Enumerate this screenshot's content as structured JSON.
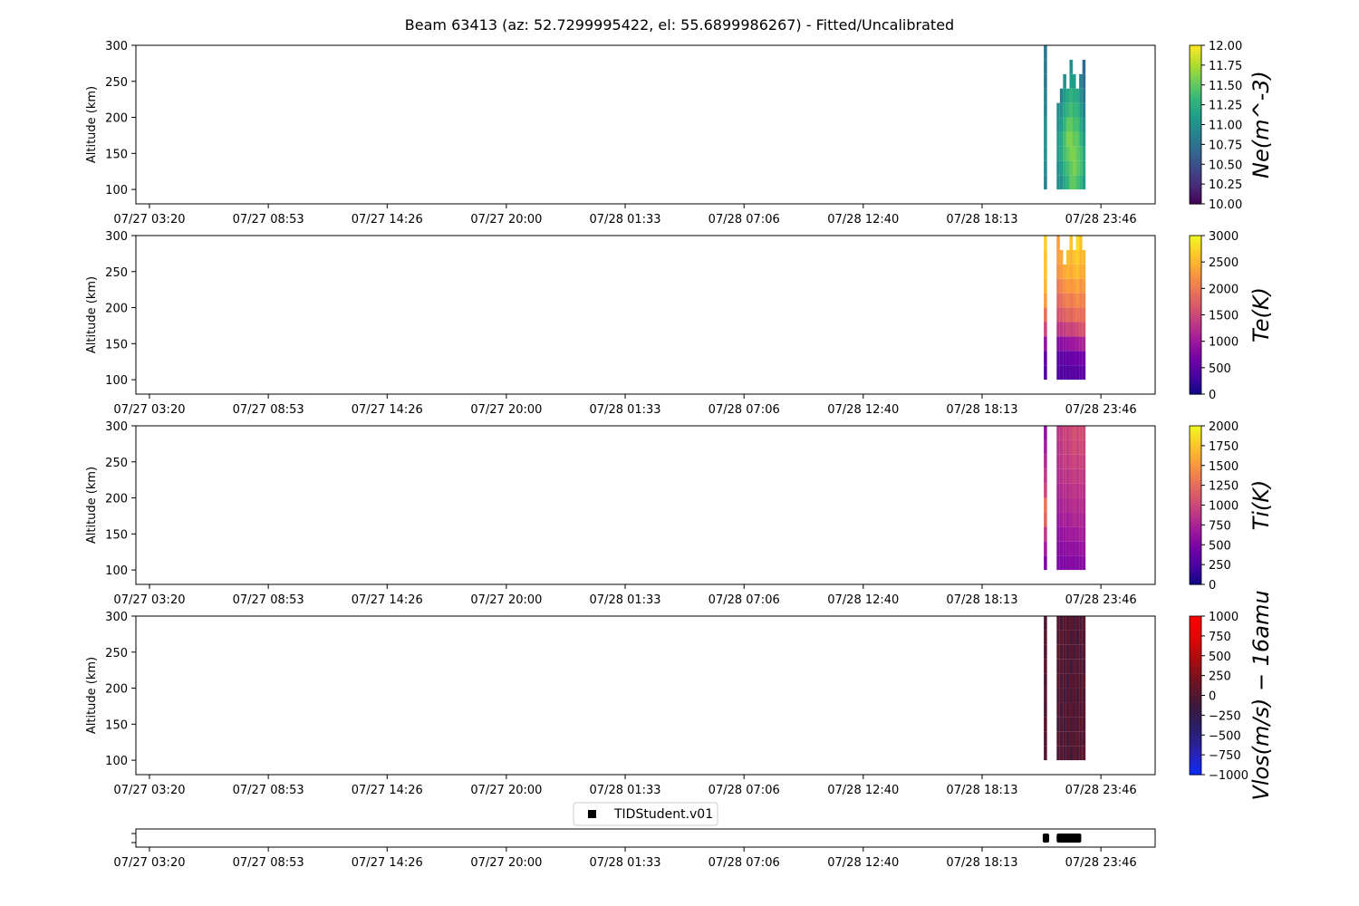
{
  "chart_data": {
    "type": "heatmap",
    "title": "Beam 63413 (az: 52.7299995422, el: 55.6899986267) - Fitted/Uncalibrated",
    "x_tick_labels": [
      "07/27 03:20",
      "07/27 08:53",
      "07/27 14:26",
      "07/27 20:00",
      "07/28 01:33",
      "07/28 07:06",
      "07/28 12:40",
      "07/28 18:13",
      "07/28 23:46"
    ],
    "x_tick_hours": [
      3.333,
      8.883,
      14.433,
      20.0,
      25.55,
      31.1,
      36.667,
      42.217,
      47.767
    ],
    "xlim_hours": [
      2.7,
      50.3
    ],
    "ylabel": "Altitude (km)",
    "ylim": [
      80,
      300
    ],
    "y_ticks": [
      100,
      150,
      200,
      250,
      300
    ],
    "altitude_bins": [
      100,
      120,
      140,
      160,
      180,
      200,
      220,
      240,
      260,
      280,
      300
    ],
    "time_columns_hours": [
      45.1,
      45.7,
      45.85,
      46.0,
      46.15,
      46.3,
      46.45,
      46.6,
      46.75,
      46.9
    ],
    "panels": [
      {
        "label": "Ne(m^-3)",
        "colormap": "viridis",
        "vmin": 10,
        "vmax": 12,
        "colorbar_ticks": [
          "10.00",
          "10.25",
          "10.50",
          "10.75",
          "11.00",
          "11.25",
          "11.50",
          "11.75",
          "12.00"
        ],
        "colorbar_values": [
          10,
          10.25,
          10.5,
          10.75,
          11,
          11.25,
          11.5,
          11.75,
          12
        ],
        "values": [
          [
            10.9,
            11.0,
            11.0,
            11.2,
            11.3,
            11.5,
            11.5,
            11.4,
            11.3,
            11.1
          ],
          [
            10.95,
            11.0,
            11.1,
            11.3,
            11.4,
            11.5,
            11.6,
            11.5,
            11.4,
            11.2
          ],
          [
            11.0,
            11.1,
            11.2,
            11.4,
            11.5,
            11.6,
            11.6,
            11.5,
            11.4,
            11.2
          ],
          [
            11.0,
            11.1,
            11.2,
            11.4,
            11.6,
            11.6,
            11.5,
            11.5,
            11.3,
            11.1
          ],
          [
            11.0,
            11.0,
            11.1,
            11.3,
            11.5,
            11.5,
            11.4,
            11.4,
            11.2,
            11.0
          ],
          [
            10.9,
            11.0,
            11.0,
            11.2,
            11.3,
            11.4,
            11.3,
            11.3,
            11.1,
            10.9
          ],
          [
            10.9,
            null,
            10.9,
            11.1,
            11.2,
            11.3,
            11.2,
            11.2,
            11.0,
            10.8
          ],
          [
            10.8,
            null,
            null,
            11.0,
            null,
            11.1,
            11.1,
            null,
            10.9,
            10.7
          ],
          [
            10.8,
            null,
            null,
            null,
            null,
            11.0,
            null,
            null,
            null,
            10.7
          ],
          [
            10.8,
            null,
            null,
            null,
            null,
            null,
            null,
            null,
            null,
            null
          ]
        ]
      },
      {
        "label": "Te(K)",
        "colormap": "plasma",
        "vmin": 0,
        "vmax": 3000,
        "colorbar_ticks": [
          "0",
          "500",
          "1000",
          "1500",
          "2000",
          "2500",
          "3000"
        ],
        "colorbar_values": [
          0,
          500,
          1000,
          1500,
          2000,
          2500,
          3000
        ],
        "values": [
          [
            400,
            400,
            420,
            430,
            450,
            460,
            470,
            480,
            500,
            520
          ],
          [
            500,
            500,
            520,
            540,
            560,
            580,
            600,
            620,
            650,
            680
          ],
          [
            900,
            800,
            850,
            900,
            950,
            1000,
            1000,
            1050,
            1100,
            1150
          ],
          [
            1500,
            1300,
            1350,
            1400,
            1500,
            1450,
            1500,
            1550,
            1600,
            1650
          ],
          [
            1900,
            1600,
            1700,
            1750,
            1850,
            1800,
            1900,
            1950,
            1850,
            1900
          ],
          [
            2300,
            1800,
            1900,
            2000,
            2100,
            2000,
            2100,
            2200,
            2050,
            2100
          ],
          [
            2500,
            2000,
            2100,
            2200,
            2300,
            2250,
            2300,
            2400,
            2200,
            2300
          ],
          [
            2600,
            2200,
            2300,
            2400,
            2500,
            2400,
            2500,
            2600,
            2400,
            2450
          ],
          [
            2600,
            2300,
            2400,
            null,
            2600,
            2500,
            2600,
            2700,
            2500,
            2550
          ],
          [
            2700,
            2300,
            null,
            null,
            null,
            2600,
            null,
            2800,
            2600,
            null
          ]
        ]
      },
      {
        "label": "Ti(K)",
        "colormap": "plasma",
        "vmin": 0,
        "vmax": 2000,
        "colorbar_ticks": [
          "0",
          "250",
          "500",
          "750",
          "1000",
          "1250",
          "1500",
          "1750",
          "2000"
        ],
        "colorbar_values": [
          0,
          250,
          500,
          750,
          1000,
          1250,
          1500,
          1750,
          2000
        ],
        "values": [
          [
            500,
            500,
            520,
            500,
            540,
            560,
            530,
            550,
            560,
            580
          ],
          [
            700,
            550,
            560,
            580,
            600,
            620,
            600,
            610,
            630,
            650
          ],
          [
            900,
            600,
            620,
            650,
            680,
            700,
            680,
            700,
            720,
            700
          ],
          [
            1200,
            650,
            700,
            750,
            700,
            750,
            800,
            760,
            780,
            750
          ],
          [
            1300,
            700,
            750,
            800,
            780,
            820,
            850,
            800,
            840,
            800
          ],
          [
            1000,
            750,
            800,
            850,
            820,
            870,
            900,
            850,
            880,
            850
          ],
          [
            900,
            800,
            850,
            900,
            860,
            920,
            950,
            900,
            930,
            900
          ],
          [
            800,
            820,
            880,
            950,
            900,
            960,
            1000,
            940,
            980,
            950
          ],
          [
            700,
            850,
            900,
            980,
            940,
            1000,
            1050,
            980,
            1020,
            1000
          ],
          [
            600,
            870,
            920,
            1000,
            960,
            1020,
            1080,
            1000,
            1050,
            1030
          ]
        ]
      },
      {
        "label": "Vlos(m/s) − 16amu",
        "colormap": "bwr-dark",
        "vmin": -1000,
        "vmax": 1000,
        "colorbar_ticks": [
          "−1000",
          "−750",
          "−500",
          "−250",
          "0",
          "250",
          "500",
          "750",
          "1000"
        ],
        "colorbar_values": [
          -1000,
          -750,
          -500,
          -250,
          0,
          250,
          500,
          750,
          1000
        ],
        "values": [
          [
            0,
            -50,
            30,
            -80,
            20,
            -100,
            50,
            -40,
            10,
            60
          ],
          [
            -20,
            40,
            -60,
            20,
            -90,
            30,
            -30,
            70,
            -50,
            20
          ],
          [
            30,
            -80,
            20,
            -120,
            60,
            -40,
            10,
            -60,
            80,
            -10
          ],
          [
            -50,
            20,
            -100,
            50,
            -30,
            80,
            -70,
            20,
            -20,
            40
          ],
          [
            10,
            -60,
            40,
            -150,
            20,
            -50,
            30,
            -90,
            60,
            -30
          ],
          [
            -30,
            50,
            -80,
            30,
            -110,
            40,
            -20,
            50,
            -40,
            70
          ],
          [
            40,
            -20,
            60,
            -90,
            30,
            -120,
            70,
            -30,
            20,
            -50
          ],
          [
            -10,
            70,
            -40,
            20,
            -60,
            30,
            -100,
            40,
            -70,
            30
          ],
          [
            20,
            -30,
            80,
            -50,
            40,
            -70,
            20,
            -110,
            50,
            -20
          ],
          [
            -40,
            20,
            -70,
            60,
            -20,
            50,
            -80,
            30,
            -60,
            40
          ]
        ]
      }
    ],
    "bottom_track": {
      "legend": "TIDStudent.v01",
      "segments_hours": [
        [
          45.05,
          45.35
        ],
        [
          45.7,
          46.85
        ]
      ]
    }
  }
}
